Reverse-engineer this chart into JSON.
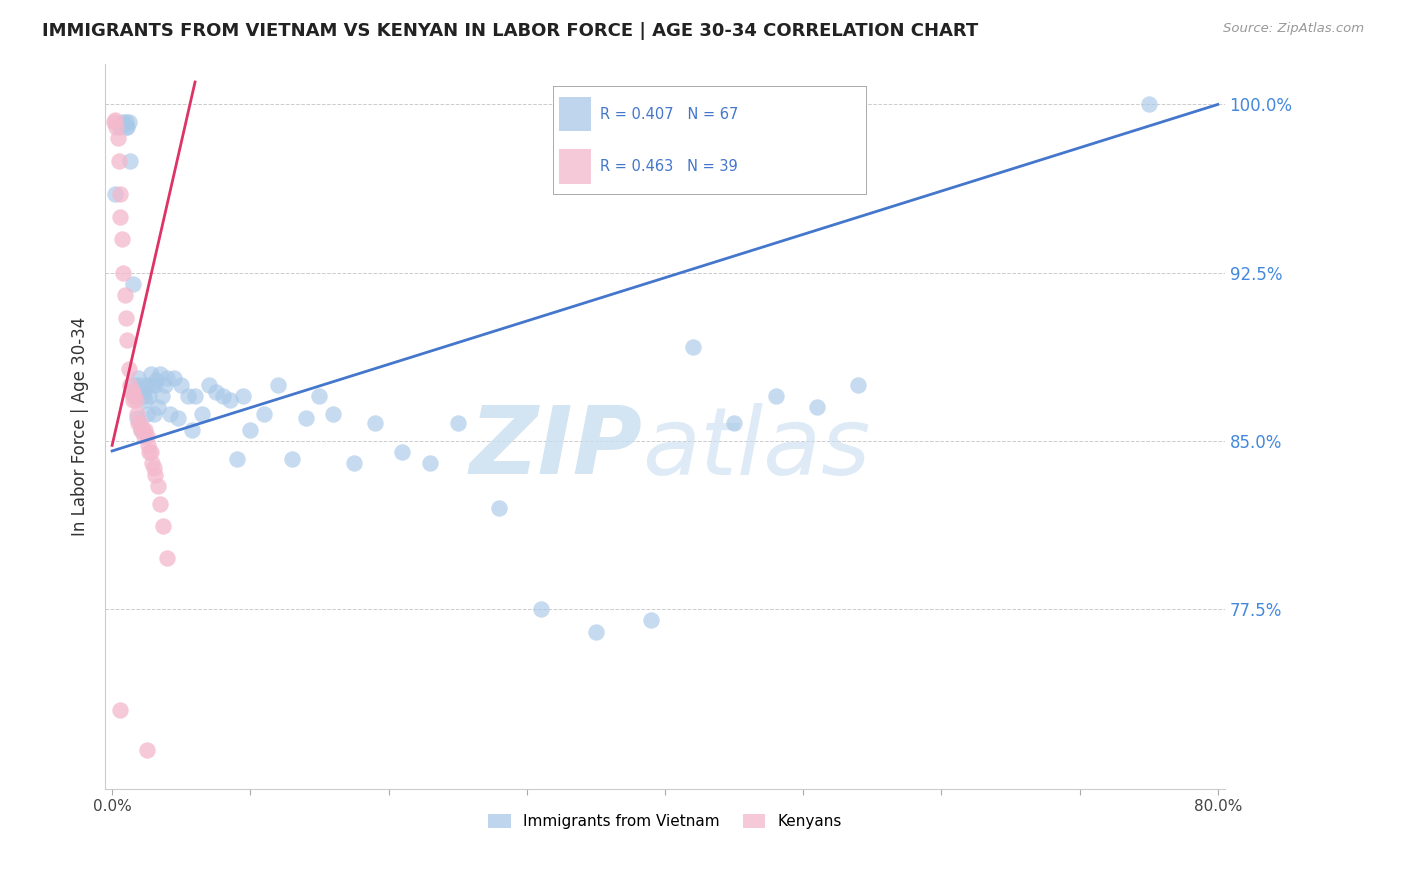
{
  "title": "IMMIGRANTS FROM VIETNAM VS KENYAN IN LABOR FORCE | AGE 30-34 CORRELATION CHART",
  "source": "Source: ZipAtlas.com",
  "ylabel": "In Labor Force | Age 30-34",
  "ytick_labels": [
    "100.0%",
    "92.5%",
    "85.0%",
    "77.5%"
  ],
  "ytick_values": [
    1.0,
    0.925,
    0.85,
    0.775
  ],
  "xlim": [
    -0.005,
    0.805
  ],
  "ylim": [
    0.695,
    1.018
  ],
  "color_vietnam": "#a8c8e8",
  "color_kenya": "#f4b8cc",
  "color_vietnam_line": "#4477cc",
  "color_kenya_line": "#dd3366",
  "watermark_zip": "ZIP",
  "watermark_atlas": "atlas",
  "vietnam_scatter_x": [
    0.002,
    0.006,
    0.008,
    0.01,
    0.01,
    0.011,
    0.012,
    0.013,
    0.015,
    0.016,
    0.017,
    0.018,
    0.019,
    0.02,
    0.021,
    0.022,
    0.023,
    0.024,
    0.025,
    0.026,
    0.027,
    0.028,
    0.029,
    0.03,
    0.031,
    0.032,
    0.033,
    0.035,
    0.036,
    0.038,
    0.04,
    0.042,
    0.045,
    0.048,
    0.05,
    0.055,
    0.058,
    0.06,
    0.065,
    0.07,
    0.075,
    0.08,
    0.085,
    0.09,
    0.095,
    0.1,
    0.11,
    0.12,
    0.13,
    0.14,
    0.15,
    0.16,
    0.175,
    0.19,
    0.21,
    0.23,
    0.25,
    0.28,
    0.31,
    0.35,
    0.39,
    0.42,
    0.45,
    0.48,
    0.51,
    0.54,
    0.75
  ],
  "vietnam_scatter_y": [
    0.96,
    0.99,
    0.992,
    0.992,
    0.99,
    0.99,
    0.992,
    0.975,
    0.92,
    0.875,
    0.87,
    0.86,
    0.878,
    0.875,
    0.855,
    0.872,
    0.87,
    0.868,
    0.862,
    0.875,
    0.87,
    0.88,
    0.875,
    0.862,
    0.875,
    0.877,
    0.865,
    0.88,
    0.87,
    0.875,
    0.878,
    0.862,
    0.878,
    0.86,
    0.875,
    0.87,
    0.855,
    0.87,
    0.862,
    0.875,
    0.872,
    0.87,
    0.868,
    0.842,
    0.87,
    0.855,
    0.862,
    0.875,
    0.842,
    0.86,
    0.87,
    0.862,
    0.84,
    0.858,
    0.845,
    0.84,
    0.858,
    0.82,
    0.775,
    0.765,
    0.77,
    0.892,
    0.858,
    0.87,
    0.865,
    0.875,
    1.0
  ],
  "kenya_scatter_x": [
    0.001,
    0.002,
    0.003,
    0.004,
    0.005,
    0.006,
    0.006,
    0.007,
    0.008,
    0.009,
    0.01,
    0.011,
    0.012,
    0.013,
    0.014,
    0.015,
    0.015,
    0.016,
    0.017,
    0.018,
    0.019,
    0.02,
    0.021,
    0.022,
    0.023,
    0.024,
    0.025,
    0.026,
    0.027,
    0.028,
    0.029,
    0.03,
    0.031,
    0.033,
    0.035,
    0.037,
    0.04,
    0.006,
    0.025
  ],
  "kenya_scatter_y": [
    0.992,
    0.993,
    0.99,
    0.985,
    0.975,
    0.96,
    0.95,
    0.94,
    0.925,
    0.915,
    0.905,
    0.895,
    0.882,
    0.875,
    0.872,
    0.872,
    0.868,
    0.87,
    0.868,
    0.862,
    0.858,
    0.858,
    0.855,
    0.855,
    0.852,
    0.855,
    0.852,
    0.848,
    0.845,
    0.845,
    0.84,
    0.838,
    0.835,
    0.83,
    0.822,
    0.812,
    0.798,
    0.73,
    0.712
  ],
  "vietnam_line_x": [
    0.0,
    0.8
  ],
  "vietnam_line_y": [
    0.8455,
    1.0
  ],
  "kenya_line_x": [
    0.0,
    0.06
  ],
  "kenya_line_y": [
    0.848,
    1.01
  ]
}
